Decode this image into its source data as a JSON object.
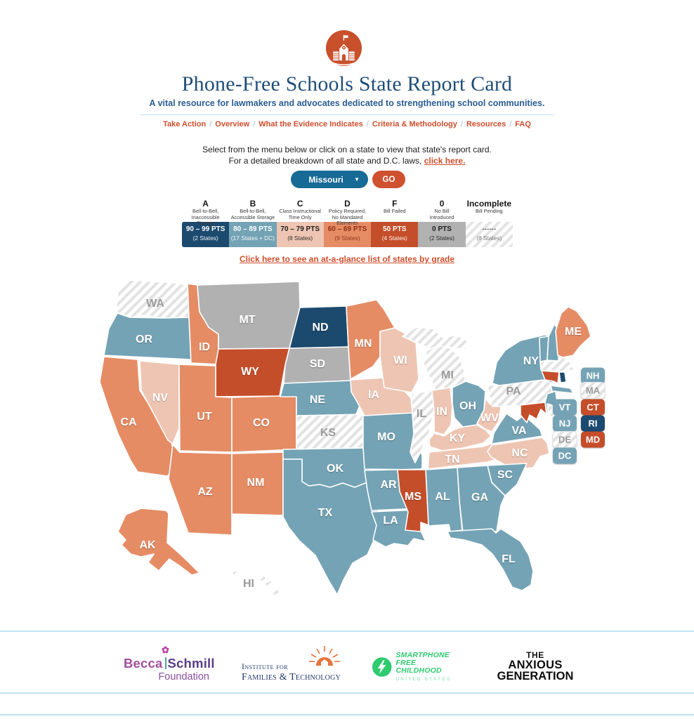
{
  "header": {
    "title": "Phone-Free Schools State Report Card",
    "subtitle": "A vital resource for lawmakers and advocates dedicated to strengthening school communities.",
    "nav": [
      "Take Action",
      "Overview",
      "What the Evidence Indicates",
      "Criteria & Methodology",
      "Resources",
      "FAQ"
    ]
  },
  "intro": {
    "line1": "Select from the menu below or click on a state to view that state's report card.",
    "line2_prefix": "For a detailed breakdown of all state and D.C. laws, ",
    "line2_link": "click here."
  },
  "controls": {
    "state_select_value": "Missouri",
    "dropdown_caret": "▼",
    "go_label": "GO"
  },
  "legend": {
    "columns": [
      {
        "grade": "A",
        "desc1": "Bell-to-Bell,",
        "desc2": "Inaccessible Storage",
        "pts": "90 – 99 PTS",
        "count": "(2 States)",
        "key": "a"
      },
      {
        "grade": "B",
        "desc1": "Bell-to-Bell,",
        "desc2": "Accessible Storage",
        "pts": "80 – 89 PTS",
        "count": "(17 States + DC)",
        "key": "b"
      },
      {
        "grade": "C",
        "desc1": "Class Instructional",
        "desc2": "Time Only",
        "pts": "70 – 79 PTS",
        "count": "(8 States)",
        "key": "c"
      },
      {
        "grade": "D",
        "desc1": "Policy Required,",
        "desc2": "No Mandated Elements",
        "pts": "60 – 69 PTS",
        "count": "(9 States)",
        "key": "d"
      },
      {
        "grade": "F",
        "desc1": "Bill Failed",
        "desc2": "",
        "pts": "50 PTS",
        "count": "(4 States)",
        "key": "f"
      },
      {
        "grade": "0",
        "desc1": "No Bill",
        "desc2": "Introduced",
        "pts": "0 PTS",
        "count": "(2 States)",
        "key": "zero"
      },
      {
        "grade": "Incomplete",
        "desc1": "Bill Pending",
        "desc2": "",
        "pts": "------",
        "count": "(8 States)",
        "key": "inc"
      }
    ],
    "link": "Click here to see an at-a-glance list of states by grade"
  },
  "map": {
    "states": [
      {
        "abbr": "WA",
        "grade": "inc"
      },
      {
        "abbr": "OR",
        "grade": "b"
      },
      {
        "abbr": "CA",
        "grade": "d"
      },
      {
        "abbr": "NV",
        "grade": "c"
      },
      {
        "abbr": "ID",
        "grade": "d"
      },
      {
        "abbr": "MT",
        "grade": "zero"
      },
      {
        "abbr": "WY",
        "grade": "f"
      },
      {
        "abbr": "UT",
        "grade": "d"
      },
      {
        "abbr": "CO",
        "grade": "d"
      },
      {
        "abbr": "AZ",
        "grade": "d"
      },
      {
        "abbr": "NM",
        "grade": "d"
      },
      {
        "abbr": "ND",
        "grade": "a"
      },
      {
        "abbr": "SD",
        "grade": "zero"
      },
      {
        "abbr": "NE",
        "grade": "b"
      },
      {
        "abbr": "KS",
        "grade": "inc"
      },
      {
        "abbr": "OK",
        "grade": "b"
      },
      {
        "abbr": "TX",
        "grade": "b"
      },
      {
        "abbr": "MN",
        "grade": "d"
      },
      {
        "abbr": "IA",
        "grade": "c"
      },
      {
        "abbr": "MO",
        "grade": "b"
      },
      {
        "abbr": "AR",
        "grade": "b"
      },
      {
        "abbr": "LA",
        "grade": "b"
      },
      {
        "abbr": "WI",
        "grade": "c"
      },
      {
        "abbr": "IL",
        "grade": "inc"
      },
      {
        "abbr": "MI",
        "grade": "inc"
      },
      {
        "abbr": "IN",
        "grade": "c"
      },
      {
        "abbr": "OH",
        "grade": "b"
      },
      {
        "abbr": "KY",
        "grade": "c"
      },
      {
        "abbr": "WV",
        "grade": "c"
      },
      {
        "abbr": "TN",
        "grade": "c"
      },
      {
        "abbr": "VA",
        "grade": "b"
      },
      {
        "abbr": "NC",
        "grade": "c"
      },
      {
        "abbr": "SC",
        "grade": "b"
      },
      {
        "abbr": "GA",
        "grade": "b"
      },
      {
        "abbr": "AL",
        "grade": "b"
      },
      {
        "abbr": "MS",
        "grade": "f"
      },
      {
        "abbr": "FL",
        "grade": "b"
      },
      {
        "abbr": "PA",
        "grade": "inc"
      },
      {
        "abbr": "NY",
        "grade": "b"
      },
      {
        "abbr": "NJ",
        "grade": "b"
      },
      {
        "abbr": "MD",
        "grade": "f"
      },
      {
        "abbr": "DE",
        "grade": "inc"
      },
      {
        "abbr": "VT",
        "grade": "b"
      },
      {
        "abbr": "NH",
        "grade": "b"
      },
      {
        "abbr": "MA",
        "grade": "inc"
      },
      {
        "abbr": "CT",
        "grade": "f"
      },
      {
        "abbr": "RI",
        "grade": "a"
      },
      {
        "abbr": "ME",
        "grade": "d"
      },
      {
        "abbr": "AK",
        "grade": "d"
      },
      {
        "abbr": "HI",
        "grade": "inc"
      }
    ],
    "badges": [
      {
        "abbr": "NH",
        "grade": "b"
      },
      {
        "abbr": "MA",
        "grade": "inc"
      },
      {
        "abbr": "VT",
        "grade": "b"
      },
      {
        "abbr": "CT",
        "grade": "f"
      },
      {
        "abbr": "NJ",
        "grade": "b"
      },
      {
        "abbr": "RI",
        "grade": "a"
      },
      {
        "abbr": "DE",
        "grade": "inc"
      },
      {
        "abbr": "MD",
        "grade": "f"
      },
      {
        "abbr": "DC",
        "grade": "b"
      }
    ]
  },
  "footer": {
    "becca": {
      "word1": "Becca",
      "word2": "Schmill",
      "line2": "Foundation"
    },
    "ift": {
      "line1": "Institute for",
      "line2": "Families & Technology"
    },
    "sfc": {
      "line1": "SMARTPHONE",
      "line2": "FREE CHILDHOOD",
      "line3": "UNITED STATES"
    },
    "tag": {
      "line1": "THE",
      "line2": "ANXIOUS",
      "line3": "GENERATION"
    }
  },
  "colors": {
    "a": "#1c4a6f",
    "b": "#74a3b5",
    "c": "#eec5b3",
    "d": "#e58c65",
    "f": "#c54e2a",
    "zero": "#b1b1b1",
    "accent": "#cf4e2c",
    "heading": "#1f4e79",
    "dropdown": "#176a95"
  }
}
